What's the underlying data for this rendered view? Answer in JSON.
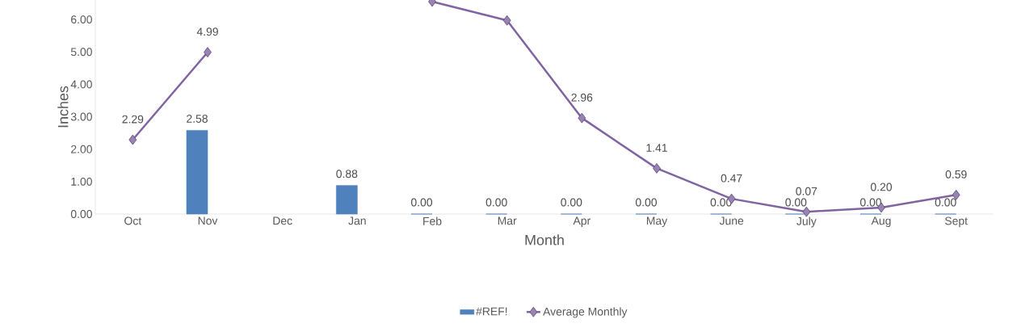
{
  "chart_data": {
    "type": "bar",
    "xlabel": "Month",
    "ylabel": "Inches",
    "categories": [
      "Oct",
      "Nov",
      "Dec",
      "Jan",
      "Feb",
      "Mar",
      "Apr",
      "May",
      "June",
      "July",
      "Aug",
      "Sept"
    ],
    "series": [
      {
        "name": "#REF!",
        "color": "#4f81bd",
        "values": [
          null,
          2.58,
          null,
          0.88,
          0.0,
          0.0,
          0.0,
          0.0,
          0.0,
          0.0,
          0.0,
          0.0
        ],
        "value_labels": [
          null,
          "2.58",
          null,
          "0.88",
          "0.00",
          "0.00",
          "0.00",
          "0.00",
          "0.00",
          "0.00",
          "0.00",
          "0.00"
        ]
      },
      {
        "name": "Average Monthly",
        "type": "line",
        "color": "#8064a2",
        "marker": "diamond",
        "values": [
          2.29,
          4.99,
          null,
          null,
          6.55,
          5.97,
          2.96,
          1.41,
          0.47,
          0.07,
          0.2,
          0.59
        ],
        "value_labels": [
          "2.29",
          "4.99",
          null,
          null,
          null,
          null,
          "2.96",
          "1.41",
          "0.47",
          "0.07",
          "0.20",
          "0.59"
        ]
      }
    ],
    "ylim": [
      0,
      6.6
    ],
    "yticks": [
      {
        "value": 0,
        "label": "0.00"
      },
      {
        "value": 1,
        "label": "1.00"
      },
      {
        "value": 2,
        "label": "2.00"
      },
      {
        "value": 3,
        "label": "3.00"
      },
      {
        "value": 4,
        "label": "4.00"
      },
      {
        "value": 5,
        "label": "5.00"
      },
      {
        "value": 6,
        "label": "6.00"
      }
    ],
    "grid": false,
    "legend": "bottom"
  }
}
